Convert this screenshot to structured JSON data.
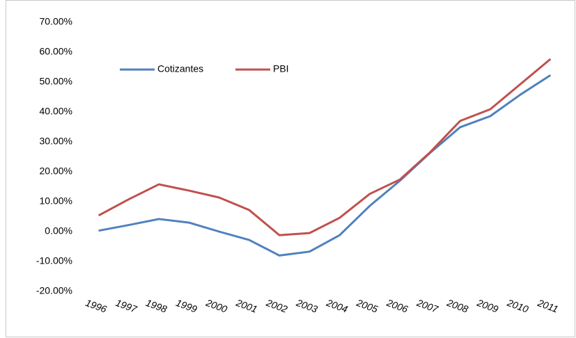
{
  "chart_data": {
    "type": "line",
    "categories": [
      "1996",
      "1997",
      "1998",
      "1999",
      "2000",
      "2001",
      "2002",
      "2003",
      "2004",
      "2005",
      "2006",
      "2007",
      "2008",
      "2009",
      "2010",
      "2011"
    ],
    "series": [
      {
        "name": "Cotizantes",
        "color": "#4f81bd",
        "values": [
          0.3,
          2.2,
          4.2,
          3.0,
          0.0,
          -2.8,
          -8.0,
          -6.7,
          -1.2,
          8.6,
          17.0,
          26.3,
          34.9,
          38.6,
          45.8,
          52.3
        ]
      },
      {
        "name": "PBI",
        "color": "#c0504d",
        "values": [
          5.4,
          10.8,
          15.8,
          13.7,
          11.4,
          7.2,
          -1.2,
          -0.5,
          4.6,
          12.6,
          17.4,
          26.5,
          37.0,
          40.9,
          49.3,
          57.7
        ]
      }
    ],
    "ylim": [
      -20,
      70
    ],
    "yticks": [
      {
        "value": -20,
        "label": "-20.00%"
      },
      {
        "value": -10,
        "label": "-10.00%"
      },
      {
        "value": 0,
        "label": "0.00%"
      },
      {
        "value": 10,
        "label": "10.00%"
      },
      {
        "value": 20,
        "label": "20.00%"
      },
      {
        "value": 30,
        "label": "30.00%"
      },
      {
        "value": 40,
        "label": "40.00%"
      },
      {
        "value": 50,
        "label": "50.00%"
      },
      {
        "value": 60,
        "label": "60.00%"
      },
      {
        "value": 70,
        "label": "70.00%"
      }
    ],
    "grid": false,
    "legend": "top-left"
  }
}
